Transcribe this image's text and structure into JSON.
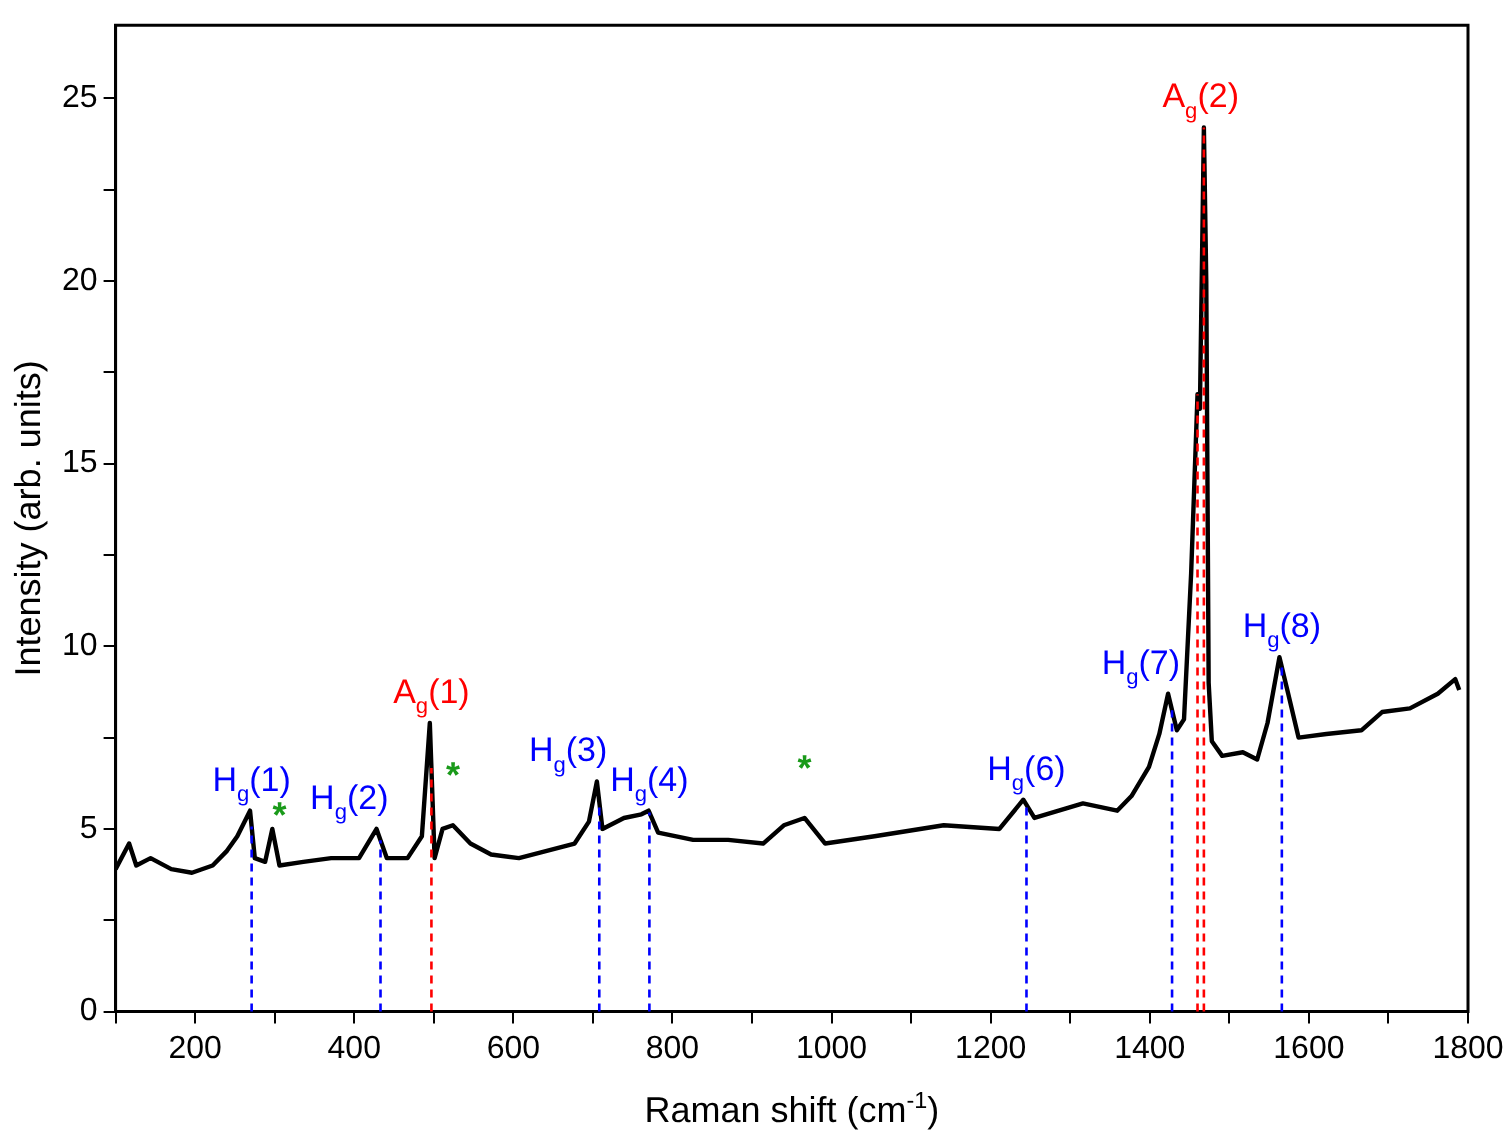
{
  "chart_data": {
    "type": "line",
    "xlabel": "Raman shift (cm$^{-1}$)",
    "ylabel": "Intensity (arb. units)",
    "xlim": [
      100,
      1800
    ],
    "ylim": [
      0,
      27
    ],
    "xticks": [
      {
        "value": 100,
        "label": null
      },
      200,
      {
        "value": 300,
        "label": null
      },
      400,
      {
        "value": 500,
        "label": null
      },
      600,
      {
        "value": 700,
        "label": null
      },
      800,
      {
        "value": 900,
        "label": null
      },
      1000,
      {
        "value": 1100,
        "label": null
      },
      1200,
      {
        "value": 1300,
        "label": null
      },
      1400,
      {
        "value": 1500,
        "label": null
      },
      1600,
      {
        "value": 1700,
        "label": null
      },
      1800
    ],
    "yticks": [
      0,
      {
        "value": 2.5,
        "label": null
      },
      5,
      {
        "value": 7.5,
        "label": null
      },
      10,
      {
        "value": 12.5,
        "label": null
      },
      15,
      {
        "value": 17.5,
        "label": null
      },
      20,
      {
        "value": 22.5,
        "label": null
      },
      25
    ],
    "grid": false,
    "legend": false,
    "marker": "none",
    "line_style": "solid",
    "series": [
      {
        "color": "#000000",
        "x": [
          100,
          117,
          126,
          144,
          170,
          196,
          222,
          240,
          253,
          269,
          275,
          288,
          297,
          306,
          336,
          371,
          406,
          428,
          441,
          467,
          485,
          495,
          501,
          511,
          524,
          546,
          572,
          607,
          642,
          677,
          695,
          705,
          712,
          739,
          761,
          770,
          782,
          826,
          870,
          914,
          940,
          966,
          992,
          1054,
          1141,
          1211,
          1241,
          1255,
          1316,
          1359,
          1377,
          1399,
          1412,
          1423,
          1434,
          1443,
          1452,
          1460,
          1463,
          1468,
          1471,
          1474,
          1478,
          1491,
          1517,
          1535,
          1548,
          1563,
          1574,
          1587,
          1622,
          1666,
          1692,
          1727,
          1762,
          1784,
          1789
        ],
        "values": [
          3.9,
          4.6,
          4.0,
          4.2,
          3.9,
          3.8,
          4.0,
          4.4,
          4.8,
          5.5,
          4.2,
          4.1,
          5.0,
          4.0,
          4.1,
          4.2,
          4.2,
          5.0,
          4.2,
          4.2,
          4.8,
          7.9,
          4.2,
          5.0,
          5.1,
          4.6,
          4.3,
          4.2,
          4.4,
          4.6,
          5.2,
          6.3,
          5.0,
          5.3,
          5.4,
          5.5,
          4.9,
          4.7,
          4.7,
          4.6,
          5.1,
          5.3,
          4.6,
          4.8,
          5.1,
          5.0,
          5.8,
          5.3,
          5.7,
          5.5,
          5.9,
          6.7,
          7.6,
          8.7,
          7.7,
          8.0,
          12.0,
          16.9,
          16.5,
          24.2,
          20.0,
          9.0,
          7.4,
          7.0,
          7.1,
          6.9,
          7.9,
          9.7,
          8.7,
          7.5,
          7.6,
          7.7,
          8.2,
          8.3,
          8.7,
          9.1,
          8.8
        ]
      }
    ],
    "ref_lines": [
      {
        "axis": "x",
        "value": 271,
        "label": "H$_{g}$(1)",
        "color": "#0000ff",
        "line_style": "dashed"
      },
      {
        "axis": "x",
        "value": 433,
        "label": "H$_{g}$(2)",
        "color": "#0000ff",
        "line_style": "dashed"
      },
      {
        "axis": "x",
        "value": 497,
        "label": "A$_{g}$(1)",
        "color": "#ff0000",
        "line_style": "dashed"
      },
      {
        "axis": "x",
        "value": 708,
        "label": "H$_{g}$(3)",
        "color": "#0000ff",
        "line_style": "dashed"
      },
      {
        "axis": "x",
        "value": 771,
        "label": "H$_{g}$(4)",
        "color": "#0000ff",
        "line_style": "dashed"
      },
      {
        "axis": "x",
        "value": 1245,
        "label": "H$_{g}$(6)",
        "color": "#0000ff",
        "line_style": "dashed"
      },
      {
        "axis": "x",
        "value": 1428,
        "label": "H$_{g}$(7)",
        "color": "#0000ff",
        "line_style": "dashed"
      },
      {
        "axis": "x",
        "value": 1460,
        "label": null,
        "color": "#ff0000",
        "line_style": "dashed"
      },
      {
        "axis": "x",
        "value": 1468,
        "label": "A$_{g}$(2)",
        "color": "#ff0000",
        "line_style": "dashed"
      },
      {
        "axis": "x",
        "value": 1566,
        "label": "H$_{g}$(8)",
        "color": "#0000ff",
        "line_style": "dashed"
      }
    ],
    "annotations": [
      {
        "text": "*",
        "x": 306,
        "y": 4.0
      },
      {
        "text": "*",
        "x": 524,
        "y": 5.1
      },
      {
        "text": "*",
        "x": 966,
        "y": 5.3
      }
    ]
  }
}
